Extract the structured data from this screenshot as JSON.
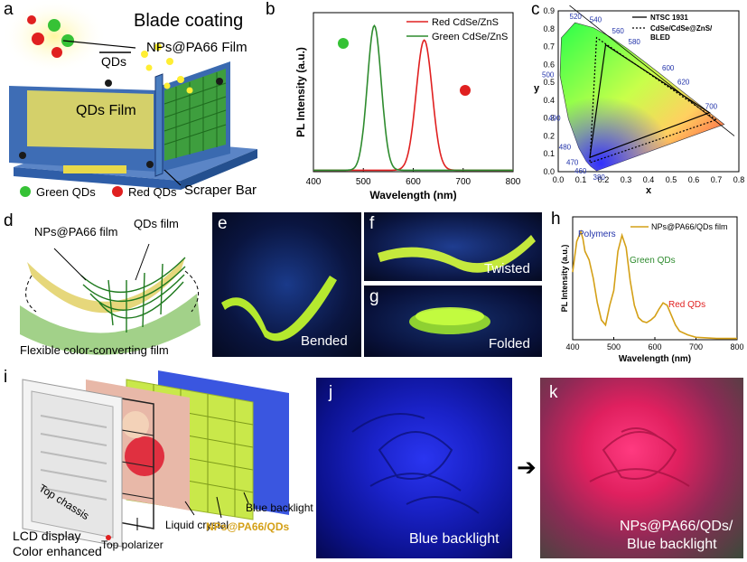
{
  "panels": {
    "a": {
      "label": "a",
      "title": "Blade coating",
      "film_label": "NPs@PA66 Film",
      "qds_label": "QDs",
      "qds_film_label": "QDs Film",
      "scraper_label": "Scraper Bar",
      "legend": [
        "Green QDs",
        "Red QDs"
      ]
    },
    "b": {
      "label": "b"
    },
    "c": {
      "label": "c"
    },
    "d": {
      "label": "d",
      "film1": "NPs@PA66 film",
      "film2": "QDs film",
      "caption": "Flexible color-converting film"
    },
    "e": {
      "label": "e",
      "caption": "Bended"
    },
    "f": {
      "label": "f",
      "caption": "Twisted"
    },
    "g": {
      "label": "g",
      "caption": "Folded"
    },
    "h": {
      "label": "h"
    },
    "i": {
      "label": "i",
      "layers": [
        "Top chassis",
        "Top polarizer",
        "Liquid crystal",
        "NPs@PA66/QDs",
        "Blue backlight"
      ],
      "caption_line1": "LCD display",
      "caption_line2": "Color enhanced"
    },
    "j": {
      "label": "j",
      "caption": "Blue backlight"
    },
    "k": {
      "label": "k",
      "caption_line1": "NPs@PA66/QDs/",
      "caption_line2": "Blue backlight"
    }
  },
  "colors": {
    "red": "#e02020",
    "green": "#2e8b2e",
    "gold": "#d4a017",
    "blue": "#1428d8"
  },
  "chart_data": [
    {
      "id": "b",
      "type": "line",
      "xlabel": "Wavelength (nm)",
      "ylabel": "PL Intensity (a.u.)",
      "xlim": [
        400,
        800
      ],
      "xticks": [
        400,
        500,
        600,
        700,
        800
      ],
      "ylim": [
        0,
        1.1
      ],
      "series": [
        {
          "name": "Red CdSe/ZnS",
          "color": "#e02020",
          "peak": 622,
          "width": 16,
          "amp": 0.9
        },
        {
          "name": "Green CdSe/ZnS",
          "color": "#2e8b2e",
          "peak": 522,
          "width": 14,
          "amp": 1.0
        }
      ]
    },
    {
      "id": "c",
      "type": "scatter",
      "xlabel": "x",
      "ylabel": "y",
      "xlim": [
        0,
        0.8
      ],
      "ylim": [
        0,
        0.9
      ],
      "xticks": [
        0.0,
        0.1,
        0.2,
        0.3,
        0.4,
        0.5,
        0.6,
        0.7,
        0.8
      ],
      "yticks": [
        0.0,
        0.1,
        0.2,
        0.3,
        0.4,
        0.5,
        0.6,
        0.7,
        0.8,
        0.9
      ],
      "wavelength_labels": [
        "520",
        "540",
        "560",
        "580",
        "600",
        "620",
        "700",
        "500",
        "490",
        "480",
        "470",
        "460",
        "380"
      ],
      "legend": [
        "NTSC 1931",
        "CdSe/CdSe@ZnS/",
        "BLED"
      ],
      "ntsc_triangle": [
        [
          0.67,
          0.33
        ],
        [
          0.21,
          0.71
        ],
        [
          0.14,
          0.08
        ]
      ],
      "bled_triangle": [
        [
          0.7,
          0.29
        ],
        [
          0.17,
          0.75
        ],
        [
          0.14,
          0.05
        ]
      ]
    },
    {
      "id": "h",
      "type": "line",
      "xlabel": "Wavelength (nm)",
      "ylabel": "PL Intensity (a.u.)",
      "xlim": [
        400,
        800
      ],
      "xticks": [
        400,
        500,
        600,
        700,
        800
      ],
      "legend": [
        "NPs@PA66/QDs film"
      ],
      "annotations": [
        "Polymers",
        "Green QDs",
        "Red QDs"
      ],
      "series": [
        {
          "name": "NPs@PA66/QDs film",
          "color": "#d4a017",
          "x": [
            400,
            410,
            420,
            425,
            430,
            440,
            450,
            460,
            470,
            480,
            490,
            500,
            510,
            520,
            530,
            540,
            550,
            560,
            570,
            580,
            590,
            600,
            610,
            620,
            630,
            640,
            650,
            660,
            680,
            700,
            750,
            800
          ],
          "y": [
            0.55,
            0.8,
            0.88,
            0.82,
            0.72,
            0.65,
            0.5,
            0.3,
            0.16,
            0.12,
            0.28,
            0.4,
            0.72,
            0.85,
            0.75,
            0.48,
            0.28,
            0.18,
            0.15,
            0.14,
            0.16,
            0.19,
            0.25,
            0.3,
            0.28,
            0.2,
            0.12,
            0.07,
            0.04,
            0.02,
            0.01,
            0.01
          ]
        }
      ]
    }
  ]
}
